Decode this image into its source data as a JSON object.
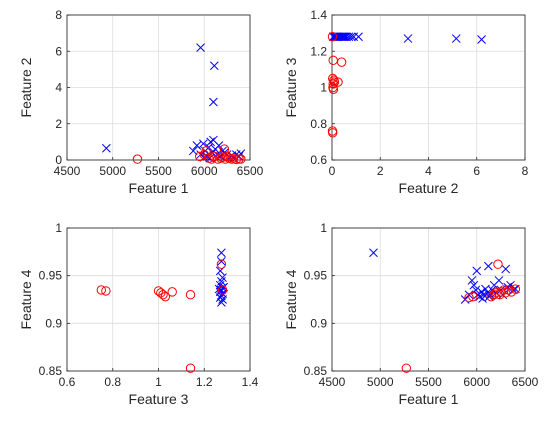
{
  "colors": {
    "class_x": "#0000ff",
    "class_o": "#ff0000",
    "grid": "#dcdcdc",
    "axis": "#262626"
  },
  "chart_data": [
    {
      "type": "scatter",
      "xlabel": "Feature 1",
      "ylabel": "Feature 2",
      "xlim": [
        4500,
        6500
      ],
      "ylim": [
        0,
        8
      ],
      "xticks": [
        "4500",
        "5000",
        "5500",
        "6000",
        "6500"
      ],
      "yticks": [
        "0",
        "2",
        "4",
        "6",
        "8"
      ],
      "grid": true,
      "series": [
        {
          "marker": "x",
          "color": "#0000ff",
          "points": [
            [
              4930,
              0.65
            ],
            [
              5960,
              6.2
            ],
            [
              6110,
              5.2
            ],
            [
              6100,
              3.2
            ],
            [
              5880,
              0.5
            ],
            [
              5920,
              0.8
            ],
            [
              5960,
              0.3
            ],
            [
              5990,
              0.9
            ],
            [
              6010,
              0.5
            ],
            [
              6030,
              0.2
            ],
            [
              6050,
              0.7
            ],
            [
              6070,
              1.0
            ],
            [
              6090,
              0.4
            ],
            [
              6100,
              1.1
            ],
            [
              6120,
              0.6
            ],
            [
              6140,
              0.3
            ],
            [
              6160,
              0.8
            ],
            [
              6180,
              0.2
            ],
            [
              6200,
              0.5
            ],
            [
              6220,
              0.4
            ],
            [
              6250,
              0.3
            ],
            [
              6280,
              0.15
            ],
            [
              6300,
              0.25
            ],
            [
              6320,
              0.1
            ],
            [
              6350,
              0.3
            ],
            [
              6380,
              0.2
            ],
            [
              6400,
              0.35
            ],
            [
              6060,
              0.1
            ],
            [
              6000,
              0.15
            ],
            [
              6150,
              0.1
            ]
          ]
        },
        {
          "marker": "o",
          "color": "#ff0000",
          "points": [
            [
              5270,
              0.05
            ],
            [
              5950,
              0.2
            ],
            [
              6000,
              0.3
            ],
            [
              6020,
              0.5
            ],
            [
              6050,
              0.1
            ],
            [
              6080,
              0.05
            ],
            [
              6110,
              0.2
            ],
            [
              6150,
              0.05
            ],
            [
              6180,
              0.1
            ],
            [
              6200,
              0.15
            ],
            [
              6230,
              0.05
            ],
            [
              6250,
              0.2
            ],
            [
              6270,
              0.1
            ],
            [
              6300,
              0.05
            ],
            [
              6320,
              0.1
            ],
            [
              6350,
              0.03
            ],
            [
              6380,
              0.05
            ],
            [
              6400,
              0.05
            ],
            [
              6220,
              0.6
            ]
          ]
        }
      ]
    },
    {
      "type": "scatter",
      "xlabel": "Feature 2",
      "ylabel": "Feature 3",
      "xlim": [
        0,
        8
      ],
      "ylim": [
        0.6,
        1.4
      ],
      "xticks": [
        "0",
        "2",
        "4",
        "6",
        "8"
      ],
      "yticks": [
        "0.6",
        "0.8",
        "1",
        "1.2",
        "1.4"
      ],
      "grid": true,
      "series": [
        {
          "marker": "x",
          "color": "#0000ff",
          "points": [
            [
              0.05,
              1.28
            ],
            [
              0.1,
              1.28
            ],
            [
              0.15,
              1.28
            ],
            [
              0.2,
              1.28
            ],
            [
              0.25,
              1.28
            ],
            [
              0.3,
              1.28
            ],
            [
              0.35,
              1.28
            ],
            [
              0.4,
              1.28
            ],
            [
              0.45,
              1.28
            ],
            [
              0.5,
              1.28
            ],
            [
              0.55,
              1.28
            ],
            [
              0.6,
              1.28
            ],
            [
              0.7,
              1.28
            ],
            [
              0.8,
              1.28
            ],
            [
              0.9,
              1.28
            ],
            [
              1.1,
              1.28
            ],
            [
              3.15,
              1.27
            ],
            [
              5.15,
              1.27
            ],
            [
              6.2,
              1.265
            ]
          ]
        },
        {
          "marker": "o",
          "color": "#ff0000",
          "points": [
            [
              0.02,
              1.28
            ],
            [
              0.05,
              1.15
            ],
            [
              0.03,
              1.05
            ],
            [
              0.08,
              1.04
            ],
            [
              0.05,
              1.02
            ],
            [
              0.1,
              1.03
            ],
            [
              0.04,
              1.0
            ],
            [
              0.06,
              0.99
            ],
            [
              0.02,
              0.76
            ],
            [
              0.03,
              0.75
            ],
            [
              0.25,
              1.03
            ],
            [
              0.4,
              1.14
            ]
          ]
        }
      ]
    },
    {
      "type": "scatter",
      "xlabel": "Feature 3",
      "ylabel": "Feature 4",
      "xlim": [
        0.6,
        1.4
      ],
      "ylim": [
        0.85,
        1.0
      ],
      "xticks": [
        "0.6",
        "0.8",
        "1",
        "1.2",
        "1.4"
      ],
      "yticks": [
        "0.85",
        "0.9",
        "0.95",
        "1"
      ],
      "grid": true,
      "series": [
        {
          "marker": "x",
          "color": "#0000ff",
          "points": [
            [
              1.275,
              0.974
            ],
            [
              1.275,
              0.965
            ],
            [
              1.27,
              0.955
            ],
            [
              1.28,
              0.948
            ],
            [
              1.275,
              0.944
            ],
            [
              1.27,
              0.94
            ],
            [
              1.28,
              0.937
            ],
            [
              1.275,
              0.935
            ],
            [
              1.27,
              0.933
            ],
            [
              1.28,
              0.931
            ],
            [
              1.275,
              0.929
            ],
            [
              1.27,
              0.927
            ],
            [
              1.28,
              0.925
            ],
            [
              1.275,
              0.922
            ],
            [
              1.285,
              0.938
            ],
            [
              1.265,
              0.936
            ]
          ]
        },
        {
          "marker": "o",
          "color": "#ff0000",
          "points": [
            [
              0.75,
              0.935
            ],
            [
              0.77,
              0.934
            ],
            [
              1.0,
              0.934
            ],
            [
              1.01,
              0.932
            ],
            [
              1.02,
              0.93
            ],
            [
              1.03,
              0.928
            ],
            [
              1.06,
              0.933
            ],
            [
              1.14,
              0.93
            ],
            [
              1.275,
              0.962
            ],
            [
              1.28,
              0.935
            ],
            [
              1.14,
              0.853
            ]
          ]
        }
      ]
    },
    {
      "type": "scatter",
      "xlabel": "Feature 1",
      "ylabel": "Feature 4",
      "xlim": [
        4500,
        6500
      ],
      "ylim": [
        0.85,
        1.0
      ],
      "xticks": [
        "4500",
        "5000",
        "5500",
        "6000",
        "6500"
      ],
      "yticks": [
        "0.85",
        "0.9",
        "0.95",
        "1"
      ],
      "grid": true,
      "series": [
        {
          "marker": "x",
          "color": "#0000ff",
          "points": [
            [
              4930,
              0.974
            ],
            [
              5880,
              0.925
            ],
            [
              5920,
              0.93
            ],
            [
              5950,
              0.945
            ],
            [
              5970,
              0.94
            ],
            [
              5990,
              0.935
            ],
            [
              6000,
              0.955
            ],
            [
              6010,
              0.93
            ],
            [
              6030,
              0.928
            ],
            [
              6050,
              0.933
            ],
            [
              6070,
              0.93
            ],
            [
              6090,
              0.936
            ],
            [
              6110,
              0.932
            ],
            [
              6120,
              0.96
            ],
            [
              6140,
              0.93
            ],
            [
              6160,
              0.935
            ],
            [
              6180,
              0.94
            ],
            [
              6200,
              0.932
            ],
            [
              6230,
              0.945
            ],
            [
              6250,
              0.935
            ],
            [
              6270,
              0.93
            ],
            [
              6300,
              0.957
            ],
            [
              6320,
              0.938
            ],
            [
              6350,
              0.94
            ],
            [
              6380,
              0.935
            ],
            [
              6400,
              0.936
            ],
            [
              6060,
              0.926
            ],
            [
              6130,
              0.928
            ]
          ]
        },
        {
          "marker": "o",
          "color": "#ff0000",
          "points": [
            [
              5270,
              0.853
            ],
            [
              5920,
              0.927
            ],
            [
              5960,
              0.928
            ],
            [
              6150,
              0.928
            ],
            [
              6180,
              0.93
            ],
            [
              6200,
              0.932
            ],
            [
              6220,
              0.962
            ],
            [
              6250,
              0.933
            ],
            [
              6280,
              0.935
            ],
            [
              6300,
              0.932
            ],
            [
              6330,
              0.935
            ],
            [
              6360,
              0.933
            ],
            [
              6400,
              0.936
            ],
            [
              6240,
              0.93
            ]
          ]
        }
      ]
    }
  ]
}
